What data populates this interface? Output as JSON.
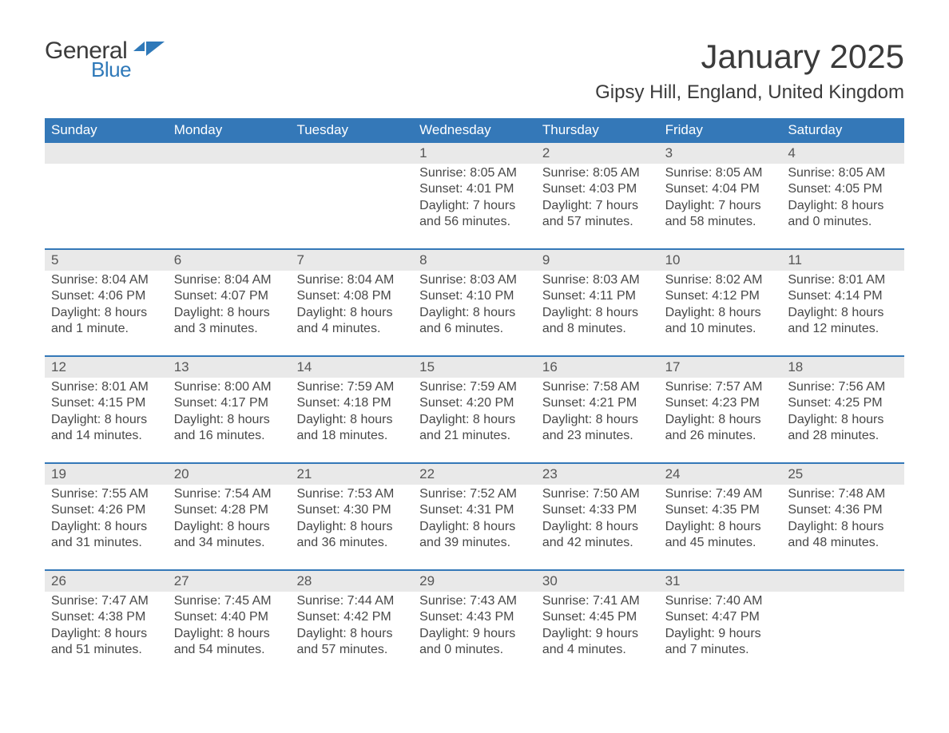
{
  "brand": {
    "word1": "General",
    "word2": "Blue"
  },
  "title": "January 2025",
  "location": "Gipsy Hill, England, United Kingdom",
  "colors": {
    "header_bg": "#3478b8",
    "header_text": "#ffffff",
    "daynum_bg": "#e9e9e9",
    "text": "#454545",
    "accent": "#2f79b9"
  },
  "weekdays": [
    "Sunday",
    "Monday",
    "Tuesday",
    "Wednesday",
    "Thursday",
    "Friday",
    "Saturday"
  ],
  "weeks": [
    [
      {
        "num": "",
        "sunrise": "",
        "sunset": "",
        "daylight1": "",
        "daylight2": ""
      },
      {
        "num": "",
        "sunrise": "",
        "sunset": "",
        "daylight1": "",
        "daylight2": ""
      },
      {
        "num": "",
        "sunrise": "",
        "sunset": "",
        "daylight1": "",
        "daylight2": ""
      },
      {
        "num": "1",
        "sunrise": "Sunrise: 8:05 AM",
        "sunset": "Sunset: 4:01 PM",
        "daylight1": "Daylight: 7 hours",
        "daylight2": "and 56 minutes."
      },
      {
        "num": "2",
        "sunrise": "Sunrise: 8:05 AM",
        "sunset": "Sunset: 4:03 PM",
        "daylight1": "Daylight: 7 hours",
        "daylight2": "and 57 minutes."
      },
      {
        "num": "3",
        "sunrise": "Sunrise: 8:05 AM",
        "sunset": "Sunset: 4:04 PM",
        "daylight1": "Daylight: 7 hours",
        "daylight2": "and 58 minutes."
      },
      {
        "num": "4",
        "sunrise": "Sunrise: 8:05 AM",
        "sunset": "Sunset: 4:05 PM",
        "daylight1": "Daylight: 8 hours",
        "daylight2": "and 0 minutes."
      }
    ],
    [
      {
        "num": "5",
        "sunrise": "Sunrise: 8:04 AM",
        "sunset": "Sunset: 4:06 PM",
        "daylight1": "Daylight: 8 hours",
        "daylight2": "and 1 minute."
      },
      {
        "num": "6",
        "sunrise": "Sunrise: 8:04 AM",
        "sunset": "Sunset: 4:07 PM",
        "daylight1": "Daylight: 8 hours",
        "daylight2": "and 3 minutes."
      },
      {
        "num": "7",
        "sunrise": "Sunrise: 8:04 AM",
        "sunset": "Sunset: 4:08 PM",
        "daylight1": "Daylight: 8 hours",
        "daylight2": "and 4 minutes."
      },
      {
        "num": "8",
        "sunrise": "Sunrise: 8:03 AM",
        "sunset": "Sunset: 4:10 PM",
        "daylight1": "Daylight: 8 hours",
        "daylight2": "and 6 minutes."
      },
      {
        "num": "9",
        "sunrise": "Sunrise: 8:03 AM",
        "sunset": "Sunset: 4:11 PM",
        "daylight1": "Daylight: 8 hours",
        "daylight2": "and 8 minutes."
      },
      {
        "num": "10",
        "sunrise": "Sunrise: 8:02 AM",
        "sunset": "Sunset: 4:12 PM",
        "daylight1": "Daylight: 8 hours",
        "daylight2": "and 10 minutes."
      },
      {
        "num": "11",
        "sunrise": "Sunrise: 8:01 AM",
        "sunset": "Sunset: 4:14 PM",
        "daylight1": "Daylight: 8 hours",
        "daylight2": "and 12 minutes."
      }
    ],
    [
      {
        "num": "12",
        "sunrise": "Sunrise: 8:01 AM",
        "sunset": "Sunset: 4:15 PM",
        "daylight1": "Daylight: 8 hours",
        "daylight2": "and 14 minutes."
      },
      {
        "num": "13",
        "sunrise": "Sunrise: 8:00 AM",
        "sunset": "Sunset: 4:17 PM",
        "daylight1": "Daylight: 8 hours",
        "daylight2": "and 16 minutes."
      },
      {
        "num": "14",
        "sunrise": "Sunrise: 7:59 AM",
        "sunset": "Sunset: 4:18 PM",
        "daylight1": "Daylight: 8 hours",
        "daylight2": "and 18 minutes."
      },
      {
        "num": "15",
        "sunrise": "Sunrise: 7:59 AM",
        "sunset": "Sunset: 4:20 PM",
        "daylight1": "Daylight: 8 hours",
        "daylight2": "and 21 minutes."
      },
      {
        "num": "16",
        "sunrise": "Sunrise: 7:58 AM",
        "sunset": "Sunset: 4:21 PM",
        "daylight1": "Daylight: 8 hours",
        "daylight2": "and 23 minutes."
      },
      {
        "num": "17",
        "sunrise": "Sunrise: 7:57 AM",
        "sunset": "Sunset: 4:23 PM",
        "daylight1": "Daylight: 8 hours",
        "daylight2": "and 26 minutes."
      },
      {
        "num": "18",
        "sunrise": "Sunrise: 7:56 AM",
        "sunset": "Sunset: 4:25 PM",
        "daylight1": "Daylight: 8 hours",
        "daylight2": "and 28 minutes."
      }
    ],
    [
      {
        "num": "19",
        "sunrise": "Sunrise: 7:55 AM",
        "sunset": "Sunset: 4:26 PM",
        "daylight1": "Daylight: 8 hours",
        "daylight2": "and 31 minutes."
      },
      {
        "num": "20",
        "sunrise": "Sunrise: 7:54 AM",
        "sunset": "Sunset: 4:28 PM",
        "daylight1": "Daylight: 8 hours",
        "daylight2": "and 34 minutes."
      },
      {
        "num": "21",
        "sunrise": "Sunrise: 7:53 AM",
        "sunset": "Sunset: 4:30 PM",
        "daylight1": "Daylight: 8 hours",
        "daylight2": "and 36 minutes."
      },
      {
        "num": "22",
        "sunrise": "Sunrise: 7:52 AM",
        "sunset": "Sunset: 4:31 PM",
        "daylight1": "Daylight: 8 hours",
        "daylight2": "and 39 minutes."
      },
      {
        "num": "23",
        "sunrise": "Sunrise: 7:50 AM",
        "sunset": "Sunset: 4:33 PM",
        "daylight1": "Daylight: 8 hours",
        "daylight2": "and 42 minutes."
      },
      {
        "num": "24",
        "sunrise": "Sunrise: 7:49 AM",
        "sunset": "Sunset: 4:35 PM",
        "daylight1": "Daylight: 8 hours",
        "daylight2": "and 45 minutes."
      },
      {
        "num": "25",
        "sunrise": "Sunrise: 7:48 AM",
        "sunset": "Sunset: 4:36 PM",
        "daylight1": "Daylight: 8 hours",
        "daylight2": "and 48 minutes."
      }
    ],
    [
      {
        "num": "26",
        "sunrise": "Sunrise: 7:47 AM",
        "sunset": "Sunset: 4:38 PM",
        "daylight1": "Daylight: 8 hours",
        "daylight2": "and 51 minutes."
      },
      {
        "num": "27",
        "sunrise": "Sunrise: 7:45 AM",
        "sunset": "Sunset: 4:40 PM",
        "daylight1": "Daylight: 8 hours",
        "daylight2": "and 54 minutes."
      },
      {
        "num": "28",
        "sunrise": "Sunrise: 7:44 AM",
        "sunset": "Sunset: 4:42 PM",
        "daylight1": "Daylight: 8 hours",
        "daylight2": "and 57 minutes."
      },
      {
        "num": "29",
        "sunrise": "Sunrise: 7:43 AM",
        "sunset": "Sunset: 4:43 PM",
        "daylight1": "Daylight: 9 hours",
        "daylight2": "and 0 minutes."
      },
      {
        "num": "30",
        "sunrise": "Sunrise: 7:41 AM",
        "sunset": "Sunset: 4:45 PM",
        "daylight1": "Daylight: 9 hours",
        "daylight2": "and 4 minutes."
      },
      {
        "num": "31",
        "sunrise": "Sunrise: 7:40 AM",
        "sunset": "Sunset: 4:47 PM",
        "daylight1": "Daylight: 9 hours",
        "daylight2": "and 7 minutes."
      },
      {
        "num": "",
        "sunrise": "",
        "sunset": "",
        "daylight1": "",
        "daylight2": ""
      }
    ]
  ]
}
